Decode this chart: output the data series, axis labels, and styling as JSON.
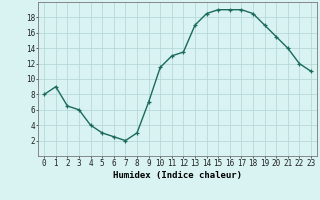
{
  "x": [
    0,
    1,
    2,
    3,
    4,
    5,
    6,
    7,
    8,
    9,
    10,
    11,
    12,
    13,
    14,
    15,
    16,
    17,
    18,
    19,
    20,
    21,
    22,
    23
  ],
  "y": [
    8,
    9,
    6.5,
    6,
    4,
    3,
    2.5,
    2,
    3,
    7,
    11.5,
    13,
    13.5,
    17,
    18.5,
    19,
    19,
    19,
    18.5,
    17,
    15.5,
    14,
    12,
    11
  ],
  "line_color": "#1a6b5a",
  "marker": "+",
  "bg_color": "#d9f2f2",
  "grid_color": "#b8d8d8",
  "xlabel": "Humidex (Indice chaleur)",
  "ylim": [
    0,
    20
  ],
  "xlim": [
    -0.5,
    23.5
  ],
  "yticks": [
    2,
    4,
    6,
    8,
    10,
    12,
    14,
    16,
    18
  ],
  "xticks": [
    0,
    1,
    2,
    3,
    4,
    5,
    6,
    7,
    8,
    9,
    10,
    11,
    12,
    13,
    14,
    15,
    16,
    17,
    18,
    19,
    20,
    21,
    22,
    23
  ],
  "xlabel_fontsize": 6.5,
  "tick_fontsize": 5.5,
  "line_width": 1.0,
  "marker_size": 3.5
}
